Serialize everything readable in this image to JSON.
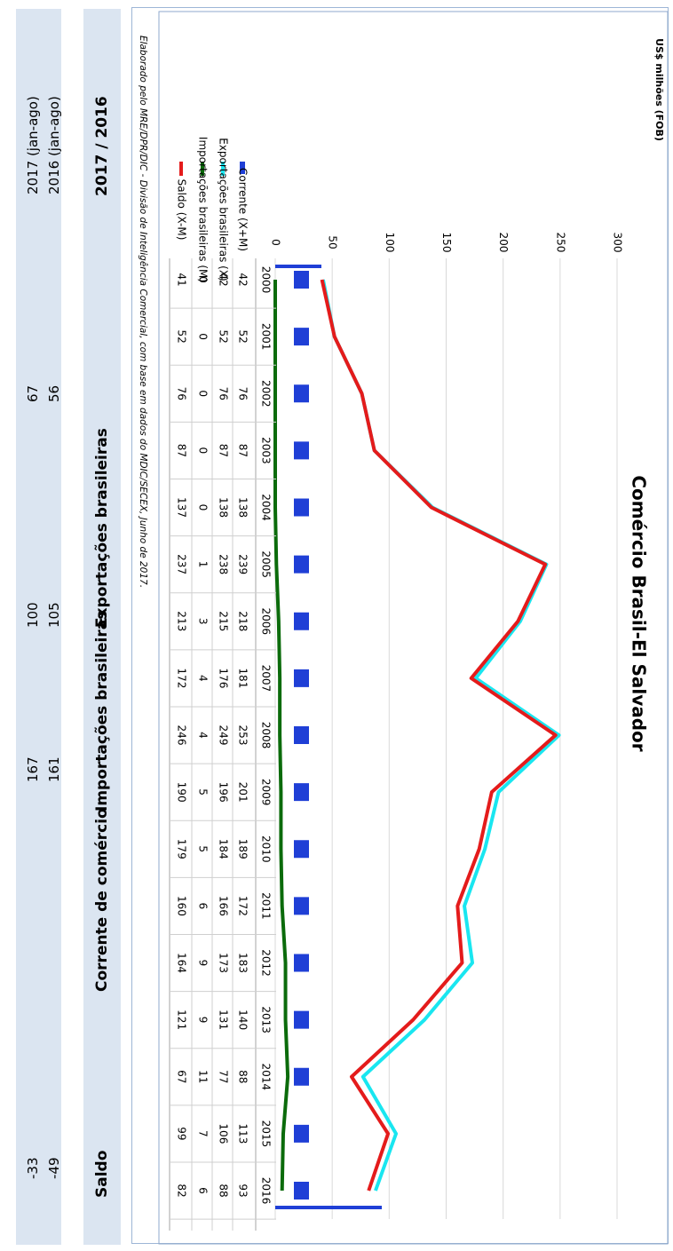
{
  "summary": {
    "headers": {
      "period": "2017 / 2016",
      "exports": "Exportações brasileiras",
      "imports": "Importações brasileiras",
      "trade": "Corrente de comércio",
      "balance": "Saldo"
    },
    "rows": [
      {
        "period": "2016 (jan-ago)",
        "exports": "56",
        "imports": "105",
        "trade": "161",
        "balance": "-49"
      },
      {
        "period": "2017 (jan-ago)",
        "exports": "67",
        "imports": "100",
        "trade": "167",
        "balance": "-33"
      }
    ]
  },
  "source_note": "Elaborado pelo MRE/DPR/DIC - Divisão de Inteligência Comercial, com base em dados do MDIC/SECEX, Junho de 2017.",
  "chart_data": {
    "type": "bar+line",
    "title": "Comércio Brasil-El Salvador",
    "ylabel": "US$ milhões (FOB)",
    "ylim": [
      0,
      300
    ],
    "yticks": [
      0,
      50,
      100,
      150,
      200,
      250,
      300
    ],
    "categories": [
      "2000",
      "2001",
      "2002",
      "2003",
      "2004",
      "2005",
      "2006",
      "2007",
      "2008",
      "2009",
      "2010",
      "2011",
      "2012",
      "2013",
      "2014",
      "2015",
      "2016"
    ],
    "series": [
      {
        "name": "Corrente (X+M)",
        "kind": "bar",
        "color": "#1f3fd6",
        "values": [
          42,
          52,
          76,
          87,
          138,
          239,
          218,
          181,
          253,
          201,
          189,
          172,
          183,
          140,
          88,
          113,
          93
        ]
      },
      {
        "name": "Exportações brasileiras (X)",
        "kind": "line",
        "color": "#19e6f0",
        "values": [
          42,
          52,
          76,
          87,
          138,
          238,
          215,
          176,
          249,
          196,
          184,
          166,
          173,
          131,
          77,
          106,
          88
        ]
      },
      {
        "name": "Importações brasileiras (M)",
        "kind": "line",
        "color": "#0b6b0b",
        "values": [
          0,
          0,
          0,
          0,
          0,
          1,
          3,
          4,
          4,
          5,
          5,
          6,
          9,
          9,
          11,
          7,
          6
        ]
      },
      {
        "name": "Saldo (X-M)",
        "kind": "line",
        "color": "#e41b1b",
        "values": [
          41,
          52,
          76,
          87,
          137,
          237,
          213,
          172,
          246,
          190,
          179,
          160,
          164,
          121,
          67,
          99,
          82
        ]
      }
    ]
  }
}
